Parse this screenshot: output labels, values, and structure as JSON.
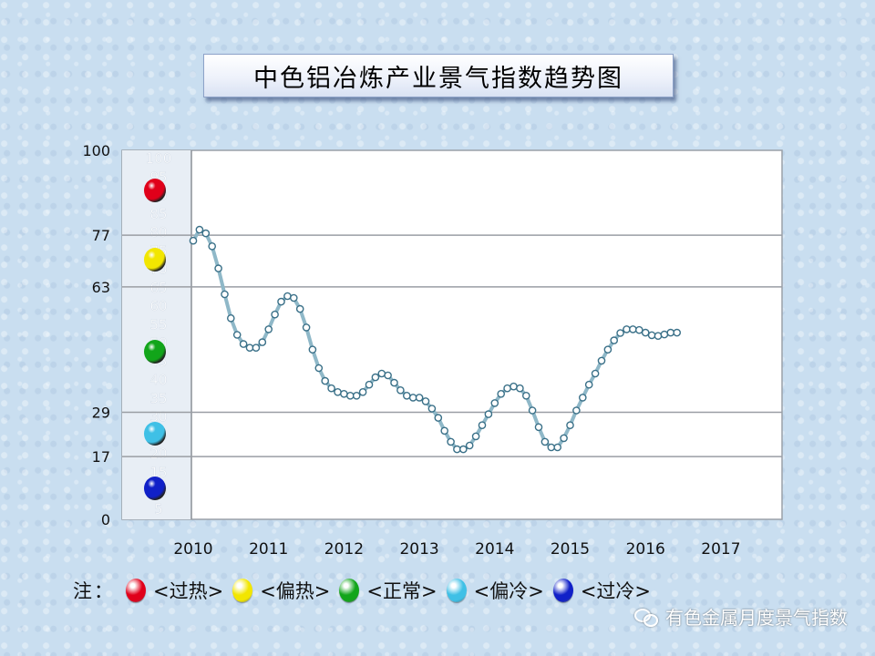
{
  "chart_data": {
    "type": "line",
    "title": "中色铝冶炼产业景气指数趋势图",
    "y_ticks": [
      0,
      17,
      29,
      63,
      77,
      100
    ],
    "scale_ticks": [
      "100",
      "95",
      "90",
      "85",
      "80",
      "75",
      "70",
      "65",
      "60",
      "55",
      "50",
      "45",
      "40",
      "35",
      "30",
      "25",
      "20",
      "15",
      "10",
      "5"
    ],
    "x_ticks": [
      "2010",
      "2011",
      "2012",
      "2013",
      "2014",
      "2015",
      "2016",
      "2017"
    ],
    "ylim": [
      0,
      100
    ],
    "grid": true,
    "zones": [
      {
        "name": "过热",
        "color": "#e0001a"
      },
      {
        "name": "偏热",
        "color": "#f2e600"
      },
      {
        "name": "正常",
        "color": "#12a51a"
      },
      {
        "name": "偏冷",
        "color": "#3fc0e6"
      },
      {
        "name": "过冷",
        "color": "#1020c8"
      }
    ],
    "series": [
      {
        "x_start": "2010-01",
        "frequency": "monthly",
        "values": [
          75.5,
          78.5,
          77.5,
          74,
          68,
          61,
          54.5,
          50,
          47.5,
          46.5,
          46.5,
          48,
          51.5,
          55.5,
          59,
          60.5,
          60,
          57,
          52,
          46,
          41,
          37.5,
          35.5,
          34.5,
          34,
          33.5,
          33.5,
          34.5,
          36.5,
          38.5,
          39.5,
          39,
          37,
          35,
          33.5,
          33,
          33,
          32,
          30,
          27.5,
          24,
          21,
          19,
          19,
          20,
          22.5,
          25.5,
          28.5,
          31.5,
          34,
          35.5,
          36,
          35.5,
          33.5,
          29.5,
          25,
          21,
          19.5,
          19.5,
          22,
          25.5,
          29.5,
          33,
          36.5,
          39.5,
          43,
          46,
          48.5,
          50.5,
          51.5,
          51.5,
          51.3,
          50.6,
          49.9,
          49.7,
          50.1,
          50.6,
          50.6
        ]
      }
    ]
  },
  "legend": {
    "note": "注：",
    "items": [
      "<过热>",
      "<偏热>",
      "<正常>",
      "<偏冷>",
      "<过冷>"
    ]
  },
  "watermark": {
    "icon": "wechat-icon",
    "text": "有色金属月度景气指数"
  }
}
